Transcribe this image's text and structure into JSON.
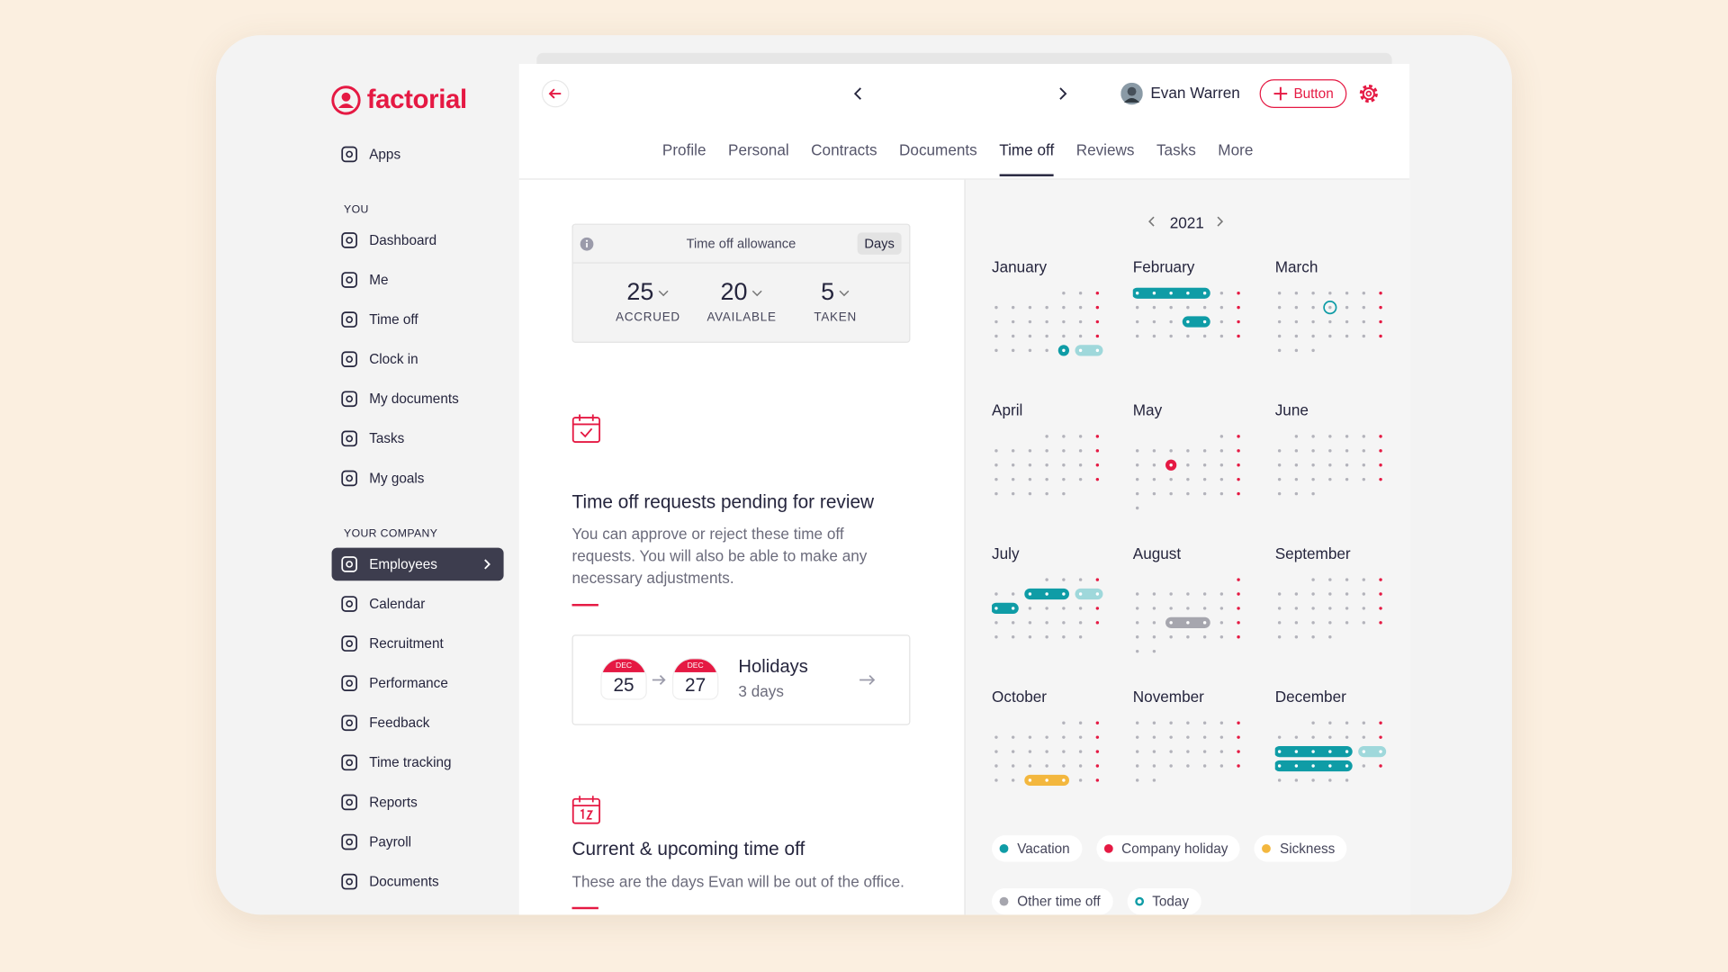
{
  "sidebar": {
    "logo": "factorial",
    "apps": "Apps",
    "sections": [
      {
        "title": "YOU",
        "items": [
          "Dashboard",
          "Me",
          "Time off",
          "Clock in",
          "My documents",
          "Tasks",
          "My goals"
        ]
      },
      {
        "title": "YOUR COMPANY",
        "items": [
          "Employees",
          "Calendar",
          "Recruitment",
          "Performance",
          "Feedback",
          "Time tracking",
          "Reports",
          "Payroll",
          "Documents"
        ]
      }
    ]
  },
  "header": {
    "employee": "Evan Warren",
    "button": "Button",
    "tabs": [
      "Profile",
      "Personal",
      "Contracts",
      "Documents",
      "Time off",
      "Reviews",
      "Tasks",
      "More"
    ]
  },
  "allowance": {
    "title": "Time off allowance",
    "unit": "Days",
    "stats": [
      {
        "value": 25,
        "label": "ACCRUED"
      },
      {
        "value": 20,
        "label": "AVAILABLE"
      },
      {
        "value": 5,
        "label": "TAKEN"
      }
    ]
  },
  "pending": {
    "title": "Time off requests pending for review",
    "description": "You can approve or reject these time off requests. You will also be able to make any necessary adjustments."
  },
  "request": {
    "from": {
      "month": "DEC",
      "day": 25
    },
    "to": {
      "month": "DEC",
      "day": 27
    },
    "title": "Holidays",
    "duration": "3 days"
  },
  "upcoming": {
    "title": "Current & upcoming time off",
    "description": "These are the days Evan will be out of the office."
  },
  "calendar": {
    "year": 2021,
    "months": [
      "January",
      "February",
      "March",
      "April",
      "May",
      "June",
      "July",
      "August",
      "September",
      "October",
      "November",
      "December"
    ]
  },
  "legend": [
    {
      "name": "Vacation",
      "color": "#0f9ca6"
    },
    {
      "name": "Company holiday",
      "color": "#e51943"
    },
    {
      "name": "Sickness",
      "color": "#f3b73e"
    },
    {
      "name": "Other time off",
      "color": "#a6a6ae"
    },
    {
      "name": "Today",
      "color": "#0f9ca6"
    }
  ]
}
